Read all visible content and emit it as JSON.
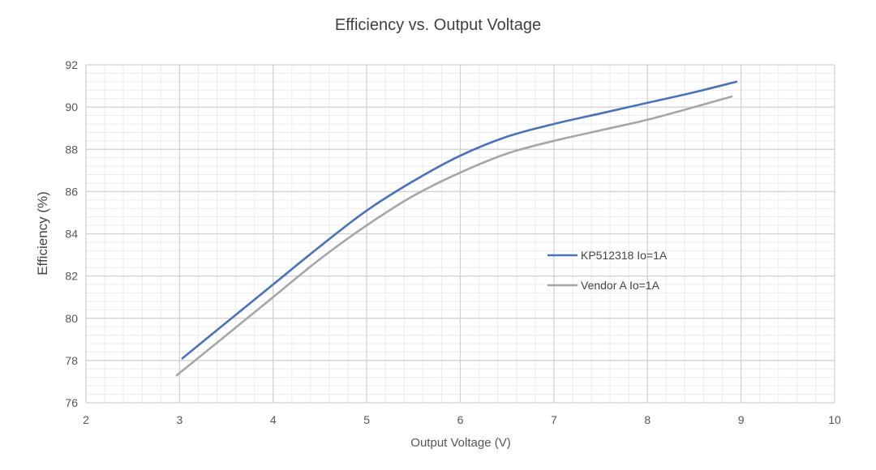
{
  "chart_data": {
    "type": "line",
    "title": "Efficiency vs. Output Voltage",
    "xlabel": "Output Voltage (V)",
    "ylabel": "Efficiency (%)",
    "xlim": [
      2,
      10
    ],
    "ylim": [
      76,
      92
    ],
    "x_ticks": [
      "2",
      "3",
      "4",
      "5",
      "6",
      "7",
      "8",
      "9",
      "10"
    ],
    "y_ticks": [
      "76",
      "78",
      "80",
      "82",
      "84",
      "86",
      "88",
      "90",
      "92"
    ],
    "grid": true,
    "minor_grid": true,
    "legend_position": "center-right",
    "series": [
      {
        "name": "KP512318  Io=1A",
        "color": "#4a72b8",
        "x": [
          3.03,
          3.5,
          4.0,
          4.5,
          5.0,
          5.5,
          6.0,
          6.5,
          7.0,
          7.5,
          8.0,
          8.5,
          8.95
        ],
        "y": [
          78.1,
          79.8,
          81.6,
          83.4,
          85.1,
          86.5,
          87.7,
          88.6,
          89.2,
          89.7,
          90.2,
          90.7,
          91.2
        ]
      },
      {
        "name": "Vendor A Io=1A",
        "color": "#a6a6a6",
        "x": [
          2.97,
          3.5,
          4.0,
          4.5,
          5.0,
          5.5,
          6.0,
          6.5,
          7.0,
          7.5,
          8.0,
          8.5,
          8.9
        ],
        "y": [
          77.3,
          79.2,
          81.0,
          82.8,
          84.4,
          85.8,
          86.9,
          87.8,
          88.4,
          88.9,
          89.4,
          90.0,
          90.5
        ]
      }
    ]
  }
}
